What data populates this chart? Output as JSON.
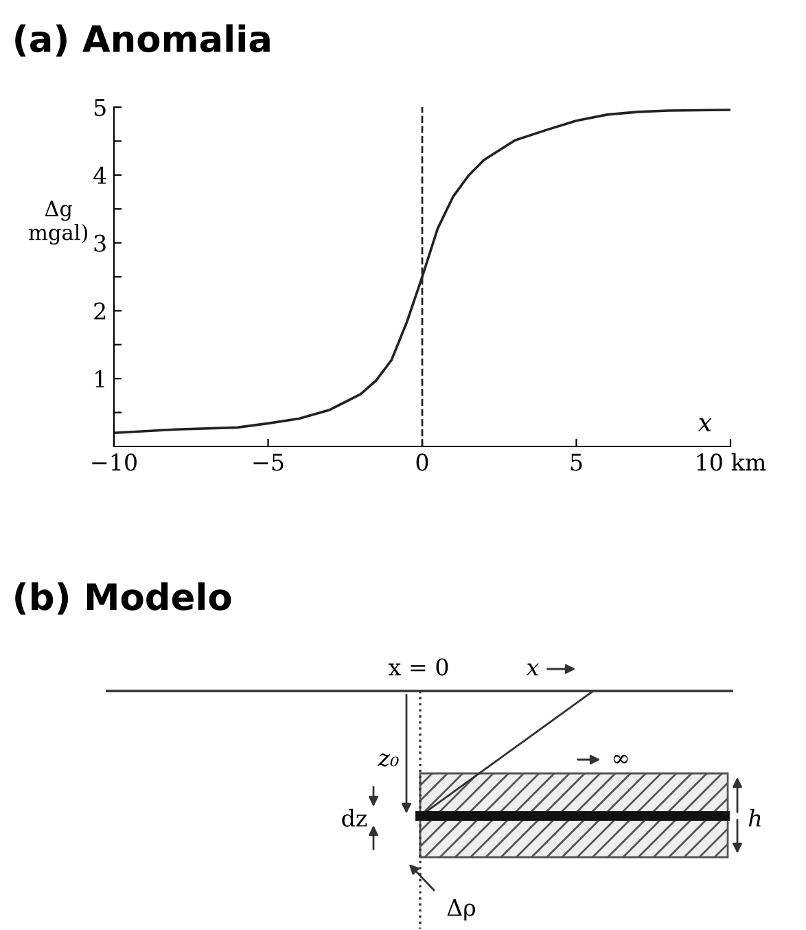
{
  "chart_data": [
    {
      "type": "line",
      "title": "(a) Anomalia",
      "xlabel": "x",
      "ylabel": "Δg\nmgal)",
      "x": [
        -10,
        -8,
        -6,
        -5,
        -4,
        -3,
        -2,
        -1.5,
        -1,
        -0.5,
        0,
        0.5,
        1,
        1.5,
        2,
        3,
        4,
        5,
        6,
        7,
        8,
        10
      ],
      "series": [
        {
          "color": "#222222",
          "values": [
            0.2,
            0.25,
            0.28,
            0.34,
            0.41,
            0.54,
            0.77,
            0.97,
            1.27,
            1.83,
            2.5,
            3.21,
            3.68,
            3.99,
            4.22,
            4.51,
            4.66,
            4.8,
            4.89,
            4.93,
            4.95,
            4.96
          ]
        }
      ],
      "xlim": [
        -10,
        10
      ],
      "ylim": [
        0,
        5
      ],
      "xticks": [
        {
          "value": -10,
          "label": "−10"
        },
        {
          "value": -5,
          "label": "−5"
        },
        0,
        5,
        {
          "value": 10,
          "label": "10 km"
        }
      ],
      "yticks": [
        {
          "value": 0.5,
          "label": null
        },
        1,
        {
          "value": 1.5,
          "label": null
        },
        2,
        {
          "value": 2.5,
          "label": null
        },
        3,
        {
          "value": 3.5,
          "label": null
        },
        4,
        {
          "value": 4.5,
          "label": null
        },
        5
      ],
      "ref_lines": [
        {
          "axis": "x",
          "value": 0,
          "line_style": "dashed",
          "color": "#222222"
        }
      ],
      "grid": false,
      "legend": false,
      "marker": "none",
      "line_style": "solid"
    },
    {
      "type": "other",
      "title": "(b) Modelo",
      "annotations": [
        "x = 0",
        "x",
        "z₀",
        "dz",
        "h",
        "Δρ",
        "∞"
      ]
    }
  ]
}
